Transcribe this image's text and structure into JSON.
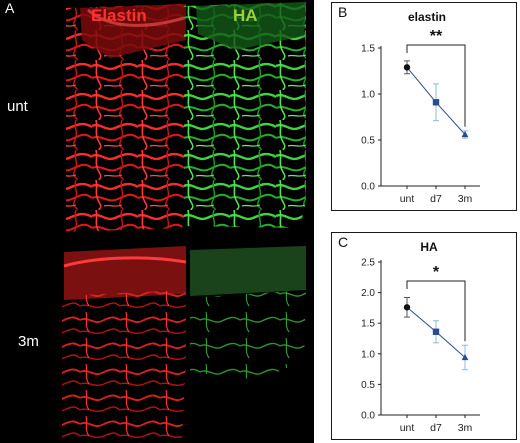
{
  "panel_a": {
    "label": "A",
    "stain_1": "Elastin",
    "stain_2": "HA",
    "row_1": "unt",
    "row_2": "3m",
    "colors": {
      "elastin": "#ff2a2a",
      "ha": "#3fd43f",
      "elastin_title": "#ff3030",
      "ha_title": "#9ccf3a"
    }
  },
  "chart_data": [
    {
      "panel": "B",
      "type": "line",
      "title": "elastin",
      "categories": [
        "unt",
        "d7",
        "3m"
      ],
      "values": [
        1.29,
        0.91,
        0.56
      ],
      "error": [
        0.07,
        0.2,
        0.04
      ],
      "ylim": [
        0,
        1.5
      ],
      "yticks": [
        "0.0",
        "0.5",
        "1.0",
        "1.5"
      ],
      "markers": [
        "circle",
        "square",
        "triangle"
      ],
      "significance": "**",
      "grid": false,
      "colors": {
        "line": "#2b4c8c",
        "marker_first": "#111111",
        "marker": "#2b4c8c",
        "error": "#8fb8e0"
      }
    },
    {
      "panel": "C",
      "type": "line",
      "title": "HA",
      "categories": [
        "unt",
        "d7",
        "3m"
      ],
      "values": [
        1.76,
        1.36,
        0.94
      ],
      "error": [
        0.16,
        0.18,
        0.2
      ],
      "ylim": [
        0,
        2.5
      ],
      "yticks": [
        "0.0",
        "0.5",
        "1.0",
        "1.5",
        "2.0",
        "2.5"
      ],
      "markers": [
        "circle",
        "square",
        "triangle"
      ],
      "significance": "*",
      "grid": false,
      "colors": {
        "line": "#2b4c8c",
        "marker_first": "#111111",
        "marker": "#2b4c8c",
        "error": "#8fb8e0"
      }
    }
  ]
}
